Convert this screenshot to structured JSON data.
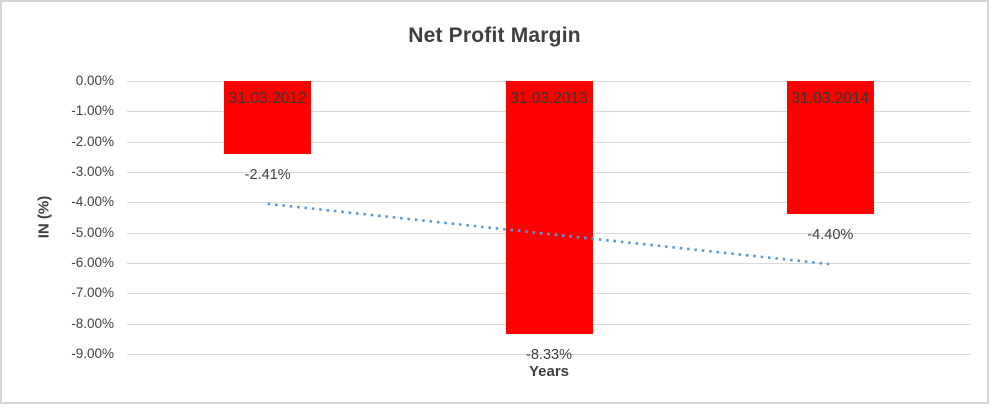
{
  "chart_data": {
    "type": "bar",
    "title": "Net Profit Margin",
    "xlabel": "Years",
    "ylabel": "IN (%)",
    "categories": [
      "31.03.2012",
      "31.03.2013",
      "31.03.2014"
    ],
    "values": [
      -2.41,
      -8.33,
      -4.4
    ],
    "value_labels": [
      "-2.41%",
      "-8.33%",
      "-4.40%"
    ],
    "ytick_labels": [
      "0.00%",
      "-1.00%",
      "-2.00%",
      "-3.00%",
      "-4.00%",
      "-5.00%",
      "-6.00%",
      "-7.00%",
      "-8.00%",
      "-9.00%"
    ],
    "ylim": [
      0,
      -9
    ],
    "grid": true,
    "legend": false,
    "bar_color": "#ff0000",
    "category_labels_inside_bars": true,
    "trendline": {
      "type": "linear",
      "style": "dotted",
      "color": "#5b9bd5",
      "start_value": -4.05,
      "end_value": -6.04
    },
    "colors": {
      "gridline": "#d9d9d9",
      "text": "#404040",
      "title": "#3f3f3f",
      "frame_border": "#d6d6d6",
      "background": "#ffffff"
    }
  }
}
